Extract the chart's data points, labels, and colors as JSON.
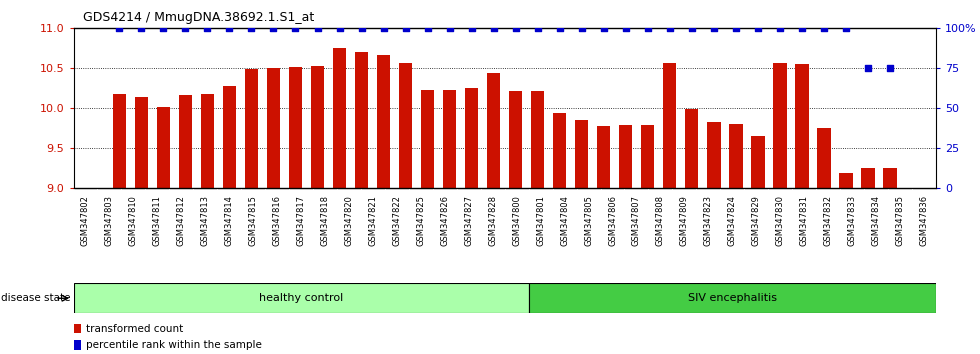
{
  "title": "GDS4214 / MmugDNA.38692.1.S1_at",
  "samples": [
    "GSM347802",
    "GSM347803",
    "GSM347810",
    "GSM347811",
    "GSM347812",
    "GSM347813",
    "GSM347814",
    "GSM347815",
    "GSM347816",
    "GSM347817",
    "GSM347818",
    "GSM347820",
    "GSM347821",
    "GSM347822",
    "GSM347825",
    "GSM347826",
    "GSM347827",
    "GSM347828",
    "GSM347800",
    "GSM347801",
    "GSM347804",
    "GSM347805",
    "GSM347806",
    "GSM347807",
    "GSM347808",
    "GSM347809",
    "GSM347823",
    "GSM347824",
    "GSM347829",
    "GSM347830",
    "GSM347831",
    "GSM347832",
    "GSM347833",
    "GSM347834",
    "GSM347835",
    "GSM347836"
  ],
  "bar_values": [
    10.17,
    10.14,
    10.01,
    10.16,
    10.17,
    10.28,
    10.49,
    10.5,
    10.51,
    10.53,
    10.75,
    10.7,
    10.67,
    10.56,
    10.22,
    10.22,
    10.25,
    10.44,
    10.21,
    10.21,
    9.94,
    9.85,
    9.77,
    9.78,
    9.78,
    10.57,
    9.99,
    9.82,
    9.8,
    9.65,
    10.57,
    10.55,
    9.75,
    9.18,
    9.25,
    9.25
  ],
  "percentile_values": [
    100,
    100,
    100,
    100,
    100,
    100,
    100,
    100,
    100,
    100,
    100,
    100,
    100,
    100,
    100,
    100,
    100,
    100,
    100,
    100,
    100,
    100,
    100,
    100,
    100,
    100,
    100,
    100,
    100,
    100,
    100,
    100,
    100,
    100,
    75,
    75
  ],
  "healthy_control_count": 19,
  "siv_count": 17,
  "bar_color": "#cc1100",
  "percentile_color": "#0000cc",
  "healthy_color": "#aaffaa",
  "siv_color": "#44cc44",
  "ylim_left": [
    9.0,
    11.0
  ],
  "ylim_right": [
    0,
    100
  ],
  "yticks_left": [
    9.0,
    9.5,
    10.0,
    10.5,
    11.0
  ],
  "yticks_right": [
    0,
    25,
    50,
    75,
    100
  ],
  "left_axis_color": "#cc1100",
  "right_axis_color": "#0000cc",
  "legend_items": [
    {
      "label": "transformed count",
      "color": "#cc1100"
    },
    {
      "label": "percentile rank within the sample",
      "color": "#0000cc"
    }
  ],
  "disease_state_label": "disease state",
  "healthy_label": "healthy control",
  "siv_label": "SIV encephalitis",
  "plot_bg_color": "#ffffff",
  "tick_label_bg": "#d4d4d4"
}
